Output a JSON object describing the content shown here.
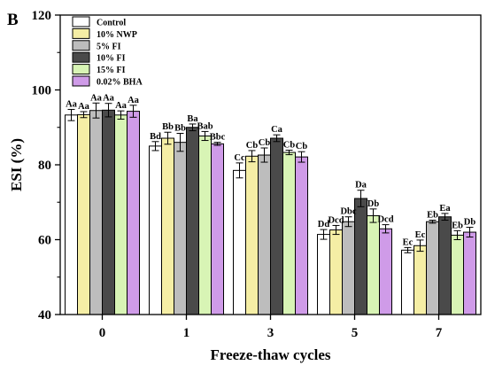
{
  "panel_label": "B",
  "chart_data": {
    "type": "bar",
    "title": "",
    "xlabel": "Freeze-thaw cycles",
    "ylabel": "ESI (%)",
    "ylim": [
      40,
      120
    ],
    "yticks": [
      40,
      60,
      80,
      100,
      120
    ],
    "categories": [
      "0",
      "1",
      "3",
      "5",
      "7"
    ],
    "grid": false,
    "legend_position": "top-left",
    "series": [
      {
        "name": "Control",
        "color": "#ffffff",
        "values": [
          93.3,
          85.0,
          78.5,
          61.4,
          57.2
        ],
        "errors": [
          1.5,
          1.2,
          2.0,
          1.3,
          0.7
        ],
        "labels": [
          "Aa",
          "Bd",
          "Cc",
          "Dd",
          "Ec"
        ]
      },
      {
        "name": "10% NWP",
        "color": "#f5eea5",
        "values": [
          93.4,
          87.1,
          82.3,
          62.6,
          58.4
        ],
        "errors": [
          0.8,
          1.6,
          1.5,
          1.2,
          1.5
        ],
        "labels": [
          "Aa",
          "Bb",
          "Cb",
          "Dcd",
          "Ec"
        ]
      },
      {
        "name": "5% FI",
        "color": "#bdbdbd",
        "values": [
          94.5,
          86.0,
          82.6,
          64.8,
          64.8
        ],
        "errors": [
          2.0,
          2.4,
          1.9,
          1.3,
          0.4
        ],
        "labels": [
          "Aa",
          "Bb",
          "Cb",
          "Dbc",
          "Eb"
        ]
      },
      {
        "name": "10% FI",
        "color": "#4a4a4a",
        "values": [
          94.6,
          90.0,
          87.1,
          71.0,
          66.1
        ],
        "errors": [
          1.8,
          0.9,
          0.9,
          2.2,
          0.9
        ],
        "labels": [
          "Aa",
          "Ba",
          "Ca",
          "Da",
          "Ea"
        ]
      },
      {
        "name": "15% FI",
        "color": "#d8f4b5",
        "values": [
          93.3,
          87.7,
          83.3,
          66.4,
          61.2
        ],
        "errors": [
          1.1,
          1.2,
          0.6,
          1.8,
          1.2
        ],
        "labels": [
          "Aa",
          "Bab",
          "Cb",
          "Db",
          "Eb"
        ]
      },
      {
        "name": "0.02% BHA",
        "color": "#cf9be8",
        "values": [
          94.3,
          85.6,
          82.1,
          62.9,
          62.0
        ],
        "errors": [
          1.6,
          0.4,
          1.4,
          1.1,
          1.3
        ],
        "labels": [
          "Aa",
          "Bbc",
          "Cb",
          "Dcd",
          "Db"
        ]
      }
    ]
  }
}
